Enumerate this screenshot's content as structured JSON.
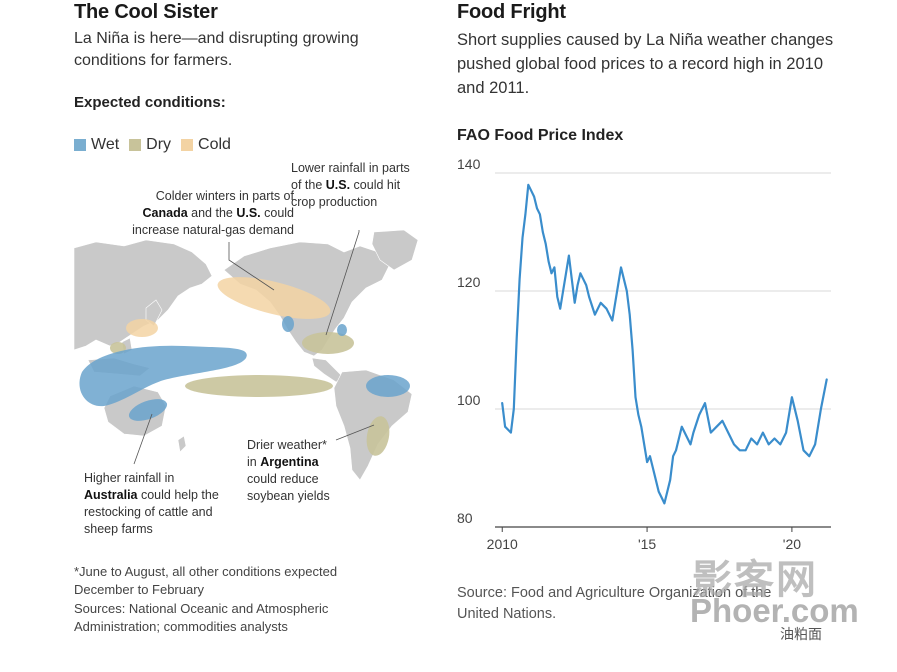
{
  "left_panel": {
    "title": "The Cool Sister",
    "subtitle": "La Niña is here—and disrupting growing conditions for farmers.",
    "expected_heading": "Expected conditions:",
    "legend": [
      {
        "label": "Wet",
        "color": "#7aaed0"
      },
      {
        "label": "Dry",
        "color": "#c8c39a"
      },
      {
        "label": "Cold",
        "color": "#f3d3a3"
      }
    ],
    "callouts": {
      "canada": {
        "line1": "Colder winters in parts of",
        "bold1": "Canada",
        "mid": " and the ",
        "bold2": "U.S.",
        "line2_end": " could",
        "line3": "increase natural-gas demand"
      },
      "us": {
        "line1": "Lower rainfall in parts",
        "pre": "of the ",
        "bold": "U.S.",
        "post": " could hit",
        "line3": "crop production"
      },
      "argentina": {
        "line1": "Drier weather*",
        "pre": "in ",
        "bold": "Argentina",
        "line3": "could reduce",
        "line4": "soybean yields"
      },
      "australia": {
        "line1": "Higher rainfall in",
        "bold": "Australia",
        "post": " could help the",
        "line3": "restocking of cattle and",
        "line4": "sheep farms"
      }
    },
    "footnote": "*June to August, all other conditions expected December to February",
    "sources": "Sources: National Oceanic and Atmospheric Administration; commodities analysts"
  },
  "right_panel": {
    "title": "Food Fright",
    "subtitle": "Short supplies caused by La Niña weather changes pushed global food prices to a record high in 2010 and 2011.",
    "chart_title": "FAO Food Price Index",
    "source": "Source: Food and Agriculture Organization of the United Nations."
  },
  "chart_data": {
    "type": "line",
    "title": "FAO Food Price Index",
    "series": [
      {
        "x": [
          2010.0,
          2010.1,
          2010.2,
          2010.3,
          2010.4,
          2010.5,
          2010.6,
          2010.7,
          2010.8,
          2010.9,
          2011.0,
          2011.1,
          2011.2,
          2011.3,
          2011.4,
          2011.5,
          2011.6,
          2011.7,
          2011.8,
          2011.9,
          2012.0,
          2012.1,
          2012.2,
          2012.3,
          2012.4,
          2012.5,
          2012.6,
          2012.7,
          2012.8,
          2012.9,
          2013.0,
          2013.2,
          2013.4,
          2013.6,
          2013.8,
          2014.0,
          2014.1,
          2014.2,
          2014.3,
          2014.4,
          2014.5,
          2014.6,
          2014.7,
          2014.8,
          2014.9,
          2015.0,
          2015.1,
          2015.2,
          2015.3,
          2015.4,
          2015.5,
          2015.6,
          2015.7,
          2015.8,
          2015.9,
          2016.0,
          2016.1,
          2016.2,
          2016.3,
          2016.4,
          2016.5,
          2016.6,
          2016.8,
          2017.0,
          2017.2,
          2017.4,
          2017.6,
          2017.8,
          2018.0,
          2018.2,
          2018.4,
          2018.6,
          2018.8,
          2019.0,
          2019.2,
          2019.4,
          2019.6,
          2019.8,
          2020.0,
          2020.2,
          2020.4,
          2020.6,
          2020.8,
          2021.0,
          2021.2
        ],
        "values": [
          101,
          97,
          96.5,
          96,
          100,
          112,
          122,
          129,
          133,
          138,
          137,
          136,
          134,
          133,
          130,
          128,
          125,
          123,
          124,
          119,
          117,
          120,
          123,
          126,
          122,
          118,
          121,
          123,
          122,
          121,
          119,
          116,
          118,
          117,
          115,
          121,
          124,
          122,
          120,
          116,
          110,
          102,
          99,
          97,
          94,
          91,
          92,
          90,
          88,
          86,
          85,
          84,
          86,
          88,
          92,
          93,
          95,
          97,
          96,
          95,
          94,
          96,
          99,
          101,
          96,
          97,
          98,
          96,
          94,
          93,
          93,
          95,
          94,
          96,
          94,
          95,
          94,
          96,
          102,
          98,
          93,
          92,
          94,
          100,
          105
        ]
      }
    ],
    "xticks": [
      "2010",
      "'15",
      "'20"
    ],
    "xtick_values": [
      2010,
      2015,
      2020
    ],
    "yticks": [
      80,
      100,
      120,
      140
    ],
    "xlim": [
      2009.75,
      2021.35
    ],
    "ylim": [
      80,
      140
    ],
    "grid": true,
    "line_color": "#3a8dcc"
  },
  "watermark": {
    "line1": "影客网",
    "line2": "Phoer.com",
    "line3": "油粕面"
  }
}
